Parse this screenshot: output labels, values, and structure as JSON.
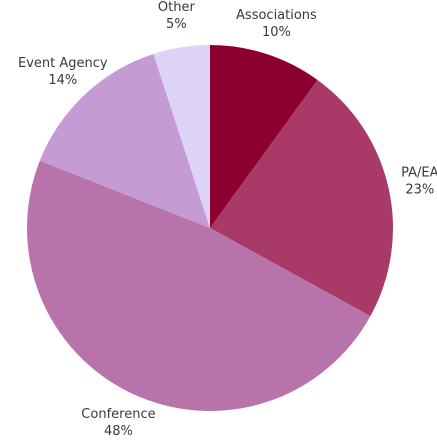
{
  "chart_data": {
    "type": "pie",
    "categories": [
      "Associations",
      "PA/EA",
      "Conference",
      "Event Agency",
      "Other"
    ],
    "values": [
      10,
      23,
      48,
      14,
      5
    ],
    "value_labels": [
      "10%",
      "23%",
      "48%",
      "14%",
      "5%"
    ],
    "colors": [
      "#8c0030",
      "#a93a67",
      "#b873aa",
      "#c59bd3",
      "#dcd3f7"
    ]
  }
}
